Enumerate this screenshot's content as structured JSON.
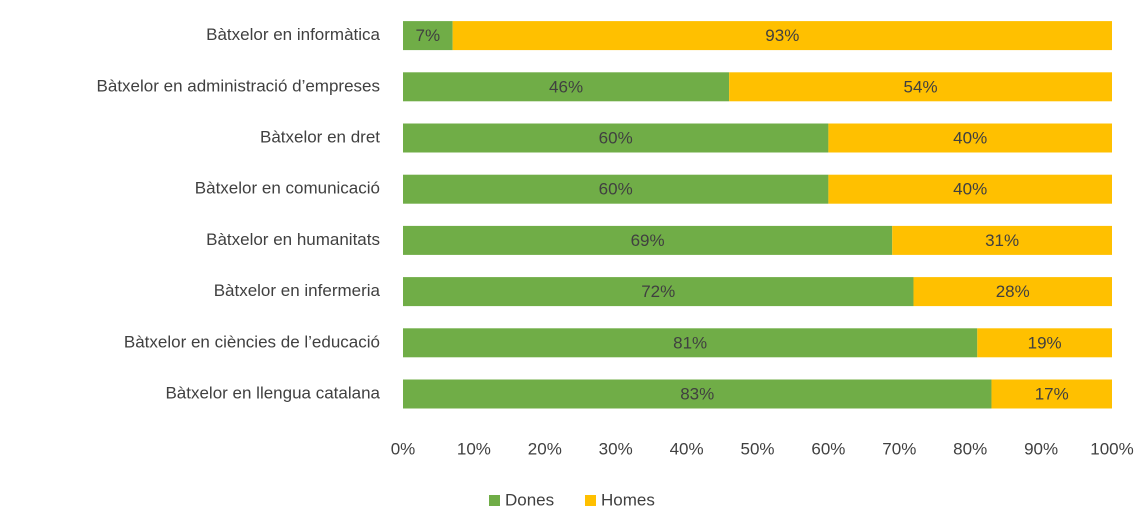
{
  "chart_data": {
    "type": "stacked_barh",
    "categories": [
      "Bàtxelor en informàtica",
      "Bàtxelor en administració d’empreses",
      "Bàtxelor en dret",
      "Bàtxelor en comunicació",
      "Bàtxelor en humanitats",
      "Bàtxelor en infermeria",
      "Bàtxelor en ciències de l’educació",
      "Bàtxelor en llengua catalana"
    ],
    "series": [
      {
        "name": "Dones",
        "color": "#70ad47",
        "values": [
          7,
          46,
          60,
          60,
          69,
          72,
          81,
          83
        ],
        "value_labels": [
          "7%",
          "46%",
          "60%",
          "60%",
          "69%",
          "72%",
          "81%",
          "83%"
        ]
      },
      {
        "name": "Homes",
        "color": "#ffc000",
        "values": [
          93,
          54,
          40,
          40,
          31,
          28,
          19,
          17
        ],
        "value_labels": [
          "93%",
          "54%",
          "40%",
          "40%",
          "31%",
          "28%",
          "19%",
          "17%"
        ]
      }
    ],
    "xlim": [
      0,
      100
    ],
    "xticks": [
      {
        "value": 0,
        "label": "0%"
      },
      {
        "value": 10,
        "label": "10%"
      },
      {
        "value": 20,
        "label": "20%"
      },
      {
        "value": 30,
        "label": "30%"
      },
      {
        "value": 40,
        "label": "40%"
      },
      {
        "value": 50,
        "label": "50%"
      },
      {
        "value": 60,
        "label": "60%"
      },
      {
        "value": 70,
        "label": "70%"
      },
      {
        "value": 80,
        "label": "80%"
      },
      {
        "value": 90,
        "label": "90%"
      },
      {
        "value": 100,
        "label": "100%"
      }
    ],
    "grid": false,
    "legend": "bottom"
  }
}
